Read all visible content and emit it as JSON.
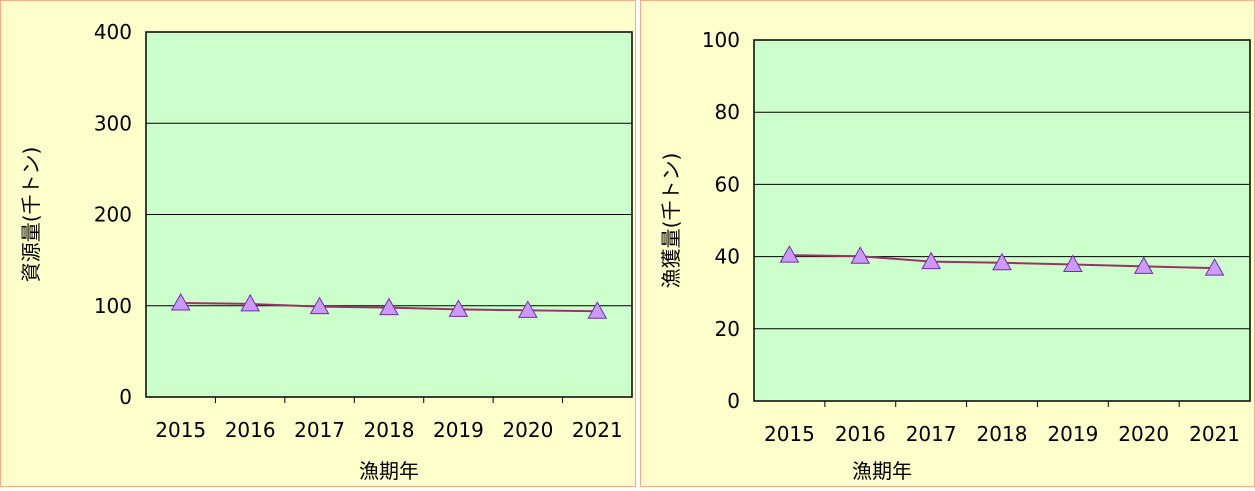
{
  "chart_data": [
    {
      "type": "line",
      "categories": [
        "2015",
        "2016",
        "2017",
        "2018",
        "2019",
        "2020",
        "2021"
      ],
      "series": [
        {
          "color": "#993366",
          "values": [
            103,
            102,
            99,
            98,
            96,
            95,
            94
          ]
        }
      ],
      "ylim": [
        0,
        400
      ],
      "yticks": [
        0,
        100,
        200,
        300,
        400
      ],
      "grid": true,
      "y_label": "資源量(千トン)",
      "x_label": "漁期年"
    },
    {
      "type": "line",
      "categories": [
        "2015",
        "2016",
        "2017",
        "2018",
        "2019",
        "2020",
        "2021"
      ],
      "series": [
        {
          "color": "#993366",
          "values": [
            40.4,
            40.1,
            38.6,
            38.3,
            37.8,
            37.3,
            36.8
          ]
        }
      ],
      "ylim": [
        0,
        100
      ],
      "yticks": [
        0,
        20,
        40,
        60,
        80,
        100
      ],
      "grid": true,
      "y_label": "漁獲量(千トン)",
      "x_label": "漁期年"
    }
  ]
}
